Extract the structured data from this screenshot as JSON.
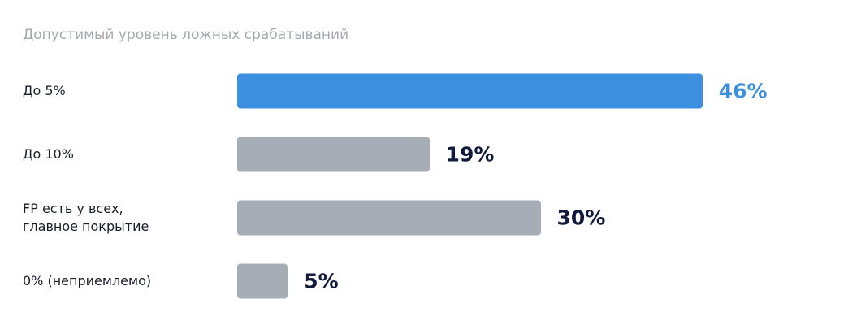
{
  "chart_data": {
    "type": "bar",
    "orientation": "horizontal",
    "title": "Допустимый уровень ложных срабатываний",
    "categories": [
      "До 5%",
      "До 10%",
      "FP есть у всех,\nглавное покрытие",
      "0% (неприемлемо)"
    ],
    "values": [
      46,
      19,
      30,
      5
    ],
    "value_labels": [
      "46%",
      "19%",
      "30%",
      "5%"
    ],
    "colors": [
      "#3d8fdf",
      "#a6adb6",
      "#a6adb6",
      "#a6adb6"
    ],
    "label_colors": [
      "#3d8fdf",
      "#111a3d",
      "#111a3d",
      "#111a3d"
    ]
  }
}
